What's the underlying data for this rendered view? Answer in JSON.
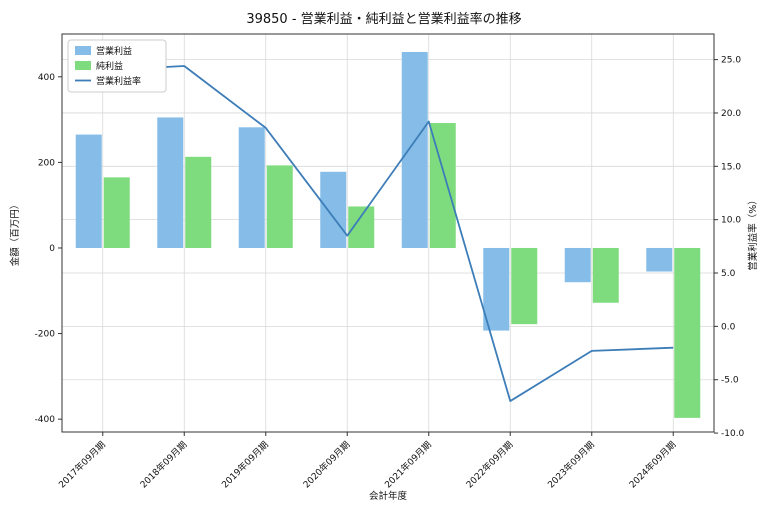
{
  "chart_data": {
    "type": "bar+line",
    "title": "39850 - 営業利益・純利益と営業利益率の推移",
    "xlabel": "会計年度",
    "ylabel_left": "金額（百万円）",
    "ylabel_right": "営業利益率（%）",
    "categories": [
      "2017年09月期",
      "2018年09月期",
      "2019年09月期",
      "2020年09月期",
      "2021年09月期",
      "2022年09月期",
      "2023年09月期",
      "2024年09月期"
    ],
    "series": [
      {
        "key": "operating-profit",
        "name": "営業利益",
        "type": "bar",
        "axis": "left",
        "color": "#85bde8",
        "values": [
          265,
          305,
          282,
          178,
          458,
          -193,
          -80,
          -55
        ]
      },
      {
        "key": "net-profit",
        "name": "純利益",
        "type": "bar",
        "axis": "left",
        "color": "#7edc7e",
        "values": [
          165,
          213,
          193,
          97,
          292,
          -178,
          -128,
          -397
        ]
      },
      {
        "key": "operating-margin",
        "name": "営業利益率",
        "type": "line",
        "axis": "right",
        "color": "#3d7db8",
        "values": [
          24.0,
          24.4,
          18.6,
          8.5,
          19.2,
          -7.0,
          -2.3,
          -2.0
        ]
      }
    ],
    "left_ylim": [
      -430,
      500
    ],
    "right_ylim": [
      -9.9,
      27.4
    ],
    "left_ticks": [
      "400",
      "200",
      "0",
      "-200",
      "-400"
    ],
    "right_ticks": [
      "25.0",
      "20.0",
      "15.0",
      "10.0",
      "5.0",
      "0.0",
      "-5.0",
      "-10.0"
    ],
    "grid": true,
    "legend_position": "upper left",
    "colors": {
      "grid": "#d9d9d9",
      "frame": "#333333",
      "text": "#111111",
      "background": "#ffffff"
    }
  }
}
